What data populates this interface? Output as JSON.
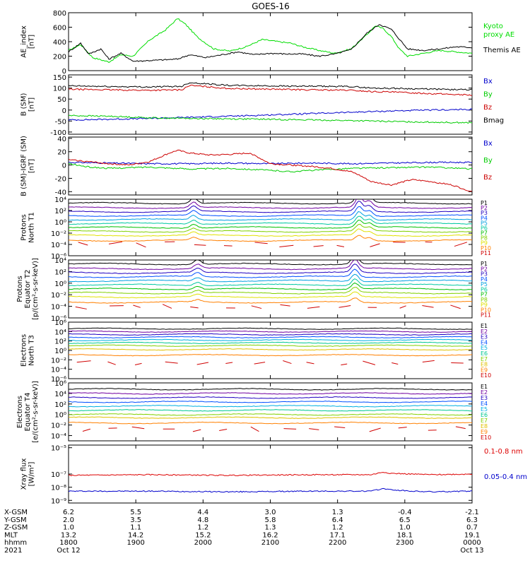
{
  "title": "GOES-16",
  "chart_data": [
    {
      "type": "line",
      "panel": "ae",
      "ylabel": [
        "AE_index",
        "[nT]"
      ],
      "ylim": [
        0,
        800
      ],
      "yticks": [
        "800",
        "600",
        "400",
        "200",
        "0"
      ],
      "ytick_values": [
        800,
        600,
        400,
        200,
        0
      ],
      "series": [
        {
          "name": "Kyoto proxy AE",
          "legend_lines": [
            "Kyoto",
            "proxy AE"
          ],
          "color": "#00dd00",
          "x": [
            0,
            0.03,
            0.06,
            0.1,
            0.13,
            0.16,
            0.2,
            0.24,
            0.27,
            0.29,
            0.32,
            0.36,
            0.4,
            0.44,
            0.48,
            0.52,
            0.55,
            0.58,
            0.62,
            0.66,
            0.7,
            0.74,
            0.76,
            0.78,
            0.8,
            0.82,
            0.84,
            0.88,
            0.92,
            0.96,
            1.0
          ],
          "y": [
            280,
            360,
            180,
            120,
            220,
            200,
            420,
            560,
            720,
            640,
            460,
            300,
            270,
            330,
            430,
            400,
            380,
            330,
            280,
            240,
            300,
            500,
            620,
            580,
            470,
            300,
            200,
            240,
            280,
            260,
            240
          ]
        },
        {
          "name": "Themis AE",
          "legend_lines": [
            "Themis AE"
          ],
          "color": "#000000",
          "x": [
            0,
            0.03,
            0.05,
            0.08,
            0.1,
            0.13,
            0.16,
            0.2,
            0.24,
            0.27,
            0.3,
            0.34,
            0.38,
            0.42,
            0.46,
            0.5,
            0.54,
            0.58,
            0.62,
            0.66,
            0.7,
            0.74,
            0.77,
            0.8,
            0.84,
            0.88,
            0.92,
            0.96,
            1.0
          ],
          "y": [
            260,
            380,
            230,
            300,
            160,
            240,
            130,
            140,
            150,
            160,
            220,
            180,
            220,
            260,
            220,
            240,
            230,
            230,
            200,
            230,
            290,
            520,
            640,
            570,
            300,
            280,
            300,
            330,
            320
          ]
        }
      ]
    },
    {
      "type": "line",
      "panel": "bsm",
      "ylabel": [
        "B (SM)",
        "[nT]"
      ],
      "ylim": [
        -110,
        160
      ],
      "yticks": [
        "150",
        "100",
        "50",
        "0",
        "-50",
        "-100"
      ],
      "ytick_values": [
        150,
        100,
        50,
        0,
        -50,
        -100
      ],
      "series": [
        {
          "name": "Bx",
          "color": "#0000cc",
          "x": [
            0,
            0.1,
            0.2,
            0.3,
            0.4,
            0.5,
            0.6,
            0.7,
            0.8,
            0.9,
            1.0
          ],
          "y": [
            -45,
            -42,
            -38,
            -33,
            -28,
            -22,
            -16,
            -10,
            -4,
            0,
            3
          ]
        },
        {
          "name": "By",
          "color": "#00cc00",
          "x": [
            0,
            0.1,
            0.2,
            0.3,
            0.4,
            0.5,
            0.6,
            0.7,
            0.8,
            0.9,
            1.0
          ],
          "y": [
            -25,
            -28,
            -35,
            -38,
            -40,
            -42,
            -45,
            -48,
            -52,
            -55,
            -58
          ]
        },
        {
          "name": "Bz",
          "color": "#cc0000",
          "x": [
            0,
            0.1,
            0.2,
            0.28,
            0.3,
            0.4,
            0.5,
            0.6,
            0.7,
            0.75,
            0.8,
            0.9,
            1.0
          ],
          "y": [
            95,
            92,
            90,
            92,
            112,
            98,
            95,
            92,
            90,
            84,
            82,
            75,
            68
          ]
        },
        {
          "name": "Bmag",
          "color": "#000000",
          "x": [
            0,
            0.1,
            0.2,
            0.28,
            0.3,
            0.4,
            0.5,
            0.6,
            0.7,
            0.75,
            0.8,
            0.9,
            1.0
          ],
          "y": [
            110,
            107,
            105,
            108,
            125,
            112,
            110,
            108,
            107,
            100,
            99,
            95,
            92
          ]
        }
      ]
    },
    {
      "type": "line",
      "panel": "bigrf",
      "ylabel": [
        "B (SM)-IGRF (SM)",
        "[nT]"
      ],
      "ylim": [
        -45,
        42
      ],
      "yticks": [
        "40",
        "20",
        "0",
        "-20",
        "-40"
      ],
      "ytick_values": [
        40,
        20,
        0,
        -20,
        -40
      ],
      "series": [
        {
          "name": "Bx",
          "color": "#0000cc",
          "x": [
            0,
            0.1,
            0.2,
            0.3,
            0.4,
            0.5,
            0.6,
            0.7,
            0.8,
            0.9,
            1.0
          ],
          "y": [
            4,
            3,
            2,
            2,
            3,
            2,
            3,
            2,
            3,
            4,
            4
          ]
        },
        {
          "name": "By",
          "color": "#00cc00",
          "x": [
            0,
            0.05,
            0.1,
            0.2,
            0.3,
            0.4,
            0.5,
            0.55,
            0.6,
            0.7,
            0.8,
            0.9,
            1.0
          ],
          "y": [
            2,
            -3,
            -5,
            -3,
            -6,
            -5,
            -8,
            -10,
            -8,
            -5,
            -4,
            -3,
            -6
          ]
        },
        {
          "name": "Bz",
          "color": "#cc0000",
          "x": [
            0,
            0.05,
            0.1,
            0.15,
            0.2,
            0.25,
            0.27,
            0.3,
            0.35,
            0.4,
            0.45,
            0.5,
            0.55,
            0.6,
            0.65,
            0.7,
            0.72,
            0.75,
            0.8,
            0.85,
            0.9,
            0.95,
            1.0
          ],
          "y": [
            8,
            5,
            2,
            0,
            5,
            18,
            22,
            18,
            15,
            16,
            18,
            2,
            0,
            -2,
            -5,
            -10,
            -15,
            -25,
            -30,
            -22,
            -25,
            -30,
            -40
          ]
        }
      ]
    },
    {
      "type": "line",
      "panel": "protons_t1",
      "scale": "log",
      "ylabel": [
        "Protons",
        "North T1"
      ],
      "ylim_exp": [
        -6,
        4
      ],
      "yticks": [
        "10⁴",
        "10²",
        "10⁰",
        "10⁻²",
        "10⁻⁴",
        "10⁻⁶"
      ],
      "ytick_exp": [
        4,
        2,
        0,
        -2,
        -4,
        -6
      ],
      "channels": [
        "P1",
        "P2",
        "P3",
        "P4",
        "P5",
        "P6",
        "P7",
        "P8",
        "P9",
        "P10",
        "P11"
      ],
      "colors": [
        "#000000",
        "#7000a0",
        "#2000c0",
        "#0050ff",
        "#00a0e0",
        "#00c8a0",
        "#00c000",
        "#80d000",
        "#e0e000",
        "#ff8000",
        "#d00000"
      ],
      "levels_exp": [
        3.3,
        2.5,
        1.8,
        1.1,
        0.4,
        -0.3,
        -1.0,
        -1.7,
        -2.4,
        -3.3,
        -4.0
      ],
      "spikes": [
        {
          "x": 0.31,
          "height": 1.0
        },
        {
          "x": 0.72,
          "height": 2.0
        },
        {
          "x": 0.745,
          "height": 1.2
        }
      ]
    },
    {
      "type": "line",
      "panel": "protons_t2",
      "scale": "log",
      "ylabel": [
        "Protons",
        "Equator T2",
        "[p/(cm²-s-sr-keV)]"
      ],
      "ylim_exp": [
        -6,
        4
      ],
      "yticks": [
        "10⁴",
        "10²",
        "10⁰",
        "10⁻²",
        "10⁻⁴",
        "10⁻⁶"
      ],
      "ytick_exp": [
        4,
        2,
        0,
        -2,
        -4,
        -6
      ],
      "channels": [
        "P1",
        "P2",
        "P3",
        "P4",
        "P5",
        "P6",
        "P7",
        "P8",
        "P9",
        "P10",
        "P11"
      ],
      "colors": [
        "#000000",
        "#7000a0",
        "#2000c0",
        "#0050ff",
        "#00a0e0",
        "#00c8a0",
        "#00c000",
        "#80d000",
        "#e0e000",
        "#ff8000",
        "#d00000"
      ],
      "levels_exp": [
        3.3,
        2.5,
        1.8,
        1.1,
        0.4,
        -0.3,
        -1.0,
        -1.7,
        -2.4,
        -3.3,
        -4.0
      ],
      "spikes": [
        {
          "x": 0.32,
          "height": 0.8
        },
        {
          "x": 0.71,
          "height": 1.6
        }
      ]
    },
    {
      "type": "line",
      "panel": "electrons_t3",
      "scale": "log",
      "ylabel": [
        "Electrons",
        "North T3"
      ],
      "ylim_exp": [
        -6,
        6
      ],
      "yticks": [
        "10⁶",
        "10⁴",
        "10²",
        "10⁰",
        "10⁻²",
        "10⁻⁴",
        "10⁻⁶"
      ],
      "ytick_exp": [
        6,
        4,
        2,
        0,
        -2,
        -4,
        -6
      ],
      "channels": [
        "E1",
        "E2",
        "E3",
        "E4",
        "E5",
        "E6",
        "E7",
        "E8",
        "E9",
        "E10"
      ],
      "colors": [
        "#000000",
        "#7000a0",
        "#2000c0",
        "#0050ff",
        "#00b0e0",
        "#00c890",
        "#80d000",
        "#e0c000",
        "#ff8000",
        "#d00000"
      ],
      "levels_exp": [
        4.6,
        4.0,
        3.4,
        2.8,
        2.2,
        1.6,
        1.0,
        0.2,
        -1.0,
        -2.6
      ],
      "spikes": []
    },
    {
      "type": "line",
      "panel": "electrons_t4",
      "scale": "log",
      "ylabel": [
        "Electrons",
        "Equator T4",
        "[e/(cm²-s-sr-keV)]"
      ],
      "ylim_exp": [
        -5,
        6
      ],
      "yticks": [
        "10⁶",
        "10⁴",
        "10²",
        "10⁰",
        "10⁻²",
        "10⁻⁴"
      ],
      "ytick_exp": [
        6,
        4,
        2,
        0,
        -2,
        -4
      ],
      "channels": [
        "E1",
        "E2",
        "E3",
        "E4",
        "E5",
        "E6",
        "E7",
        "E8",
        "E9",
        "E10"
      ],
      "colors": [
        "#000000",
        "#7000a0",
        "#2000c0",
        "#0050ff",
        "#00b0e0",
        "#00c890",
        "#80d000",
        "#e0c000",
        "#ff8000",
        "#d00000"
      ],
      "levels_exp": [
        4.8,
        4.0,
        3.2,
        2.4,
        1.6,
        0.8,
        0.0,
        -0.6,
        -1.6,
        -2.8
      ],
      "spikes": []
    },
    {
      "type": "line",
      "panel": "xray",
      "scale": "log",
      "ylabel": [
        "Xray flux",
        "[W/m²]"
      ],
      "ylim_exp": [
        -9.2,
        -4.8
      ],
      "yticks": [
        "10⁻⁵",
        "10⁻⁷",
        "10⁻⁸",
        "10⁻⁹"
      ],
      "ytick_exp": [
        -5,
        -7,
        -8,
        -9
      ],
      "series": [
        {
          "name": "0.1-0.8 nm",
          "color": "#dd0000",
          "x": [
            0,
            0.2,
            0.4,
            0.6,
            0.75,
            0.78,
            0.8,
            0.85,
            0.9,
            1.0
          ],
          "y_exp": [
            -7.1,
            -7.05,
            -7.1,
            -7.05,
            -7.05,
            -6.85,
            -6.95,
            -7.0,
            -7.05,
            -7.0
          ]
        },
        {
          "name": "0.05-0.4 nm",
          "color": "#0000cc",
          "x": [
            0,
            0.2,
            0.4,
            0.6,
            0.75,
            0.78,
            0.8,
            0.85,
            0.9,
            1.0
          ],
          "y_exp": [
            -8.3,
            -8.3,
            -8.35,
            -8.3,
            -8.3,
            -8.1,
            -8.2,
            -8.3,
            -8.35,
            -8.3
          ]
        }
      ]
    }
  ],
  "x_axis": {
    "row_labels": [
      "X-GSM",
      "Y-GSM",
      "Z-GSM",
      "MLT",
      "hhmm",
      "2021"
    ],
    "ticks": [
      {
        "values": [
          "6.2",
          "2.0",
          "1.0",
          "13.2",
          "1800",
          "Oct 12"
        ]
      },
      {
        "values": [
          "5.5",
          "3.5",
          "1.1",
          "14.2",
          "1900",
          ""
        ]
      },
      {
        "values": [
          "4.4",
          "4.8",
          "1.2",
          "15.2",
          "2000",
          ""
        ]
      },
      {
        "values": [
          "3.0",
          "5.8",
          "1.3",
          "16.2",
          "2100",
          ""
        ]
      },
      {
        "values": [
          "1.3",
          "6.4",
          "1.2",
          "17.1",
          "2200",
          ""
        ]
      },
      {
        "values": [
          "-0.4",
          "6.5",
          "1.0",
          "18.1",
          "2300",
          ""
        ]
      },
      {
        "values": [
          "-2.1",
          "6.3",
          "0.7",
          "19.1",
          "0000",
          "Oct 13"
        ]
      }
    ]
  }
}
